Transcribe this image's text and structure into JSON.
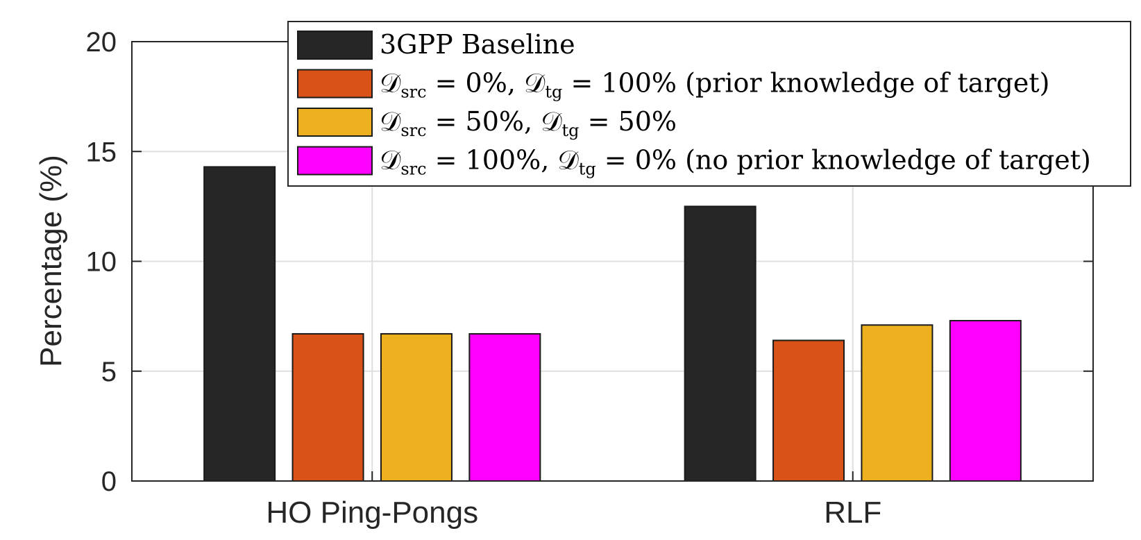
{
  "chart_data": {
    "type": "bar",
    "title": "",
    "xlabel": "",
    "ylabel": "Percentage (%)",
    "ylim": [
      0,
      20
    ],
    "yticks": [
      0,
      5,
      10,
      15,
      20
    ],
    "grid": true,
    "legend_position": "top-right",
    "categories": [
      "HO Ping-Pongs",
      "RLF"
    ],
    "series": [
      {
        "name": "3GPP Baseline",
        "color": "#262626",
        "values": [
          14.3,
          12.5
        ],
        "legend": {
          "plain": "3GPP Baseline"
        }
      },
      {
        "name": "D_src = 0%, D_tg = 100% (prior knowledge of target)",
        "color": "#D95319",
        "values": [
          6.7,
          6.4
        ],
        "legend": {
          "sym": "𝒟",
          "src_sub": "src",
          "src_val": " = 0%, ",
          "tg_sub": "tg",
          "tg_val": " = 100% (prior knowledge of target)"
        }
      },
      {
        "name": "D_src = 50%, D_tg = 50%",
        "color": "#EDB120",
        "values": [
          6.7,
          7.1
        ],
        "legend": {
          "sym": "𝒟",
          "src_sub": "src",
          "src_val": " = 50%, ",
          "tg_sub": "tg",
          "tg_val": " = 50%"
        }
      },
      {
        "name": "D_src = 100%, D_tg = 0% (no prior knowledge of target)",
        "color": "#FF00FF",
        "values": [
          6.7,
          7.3
        ],
        "legend": {
          "sym": "𝒟",
          "src_sub": "src",
          "src_val": " = 100%, ",
          "tg_sub": "tg",
          "tg_val": " = 0% (no prior knowledge of target)"
        }
      }
    ]
  }
}
